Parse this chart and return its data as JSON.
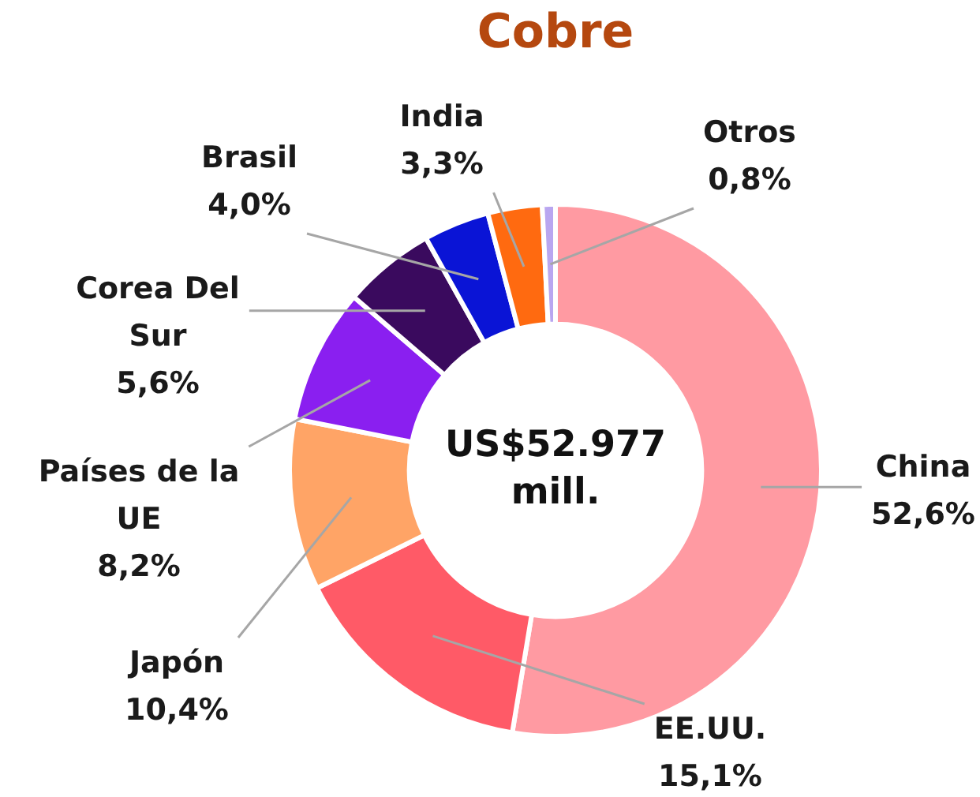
{
  "chart_data": {
    "type": "donut",
    "title": "Cobre",
    "categories": [
      "China",
      "EE.UU.",
      "Japón",
      "Países de la UE",
      "Corea Del Sur",
      "Brasil",
      "India",
      "Otros"
    ],
    "values": [
      52.6,
      15.1,
      10.4,
      8.2,
      5.6,
      4.0,
      3.3,
      0.8
    ],
    "value_labels": [
      "52,6%",
      "15,1%",
      "10,4%",
      "8,2%",
      "5,6%",
      "4,0%",
      "3,3%",
      "0,8%"
    ],
    "colors": [
      "#ff9aa2",
      "#ff5a67",
      "#ffa466",
      "#8a1ff0",
      "#3a0a5e",
      "#0a14d6",
      "#ff6a10",
      "#b9a6f0"
    ],
    "annotations": [
      "US$52.977 mill."
    ],
    "legend": false
  }
}
